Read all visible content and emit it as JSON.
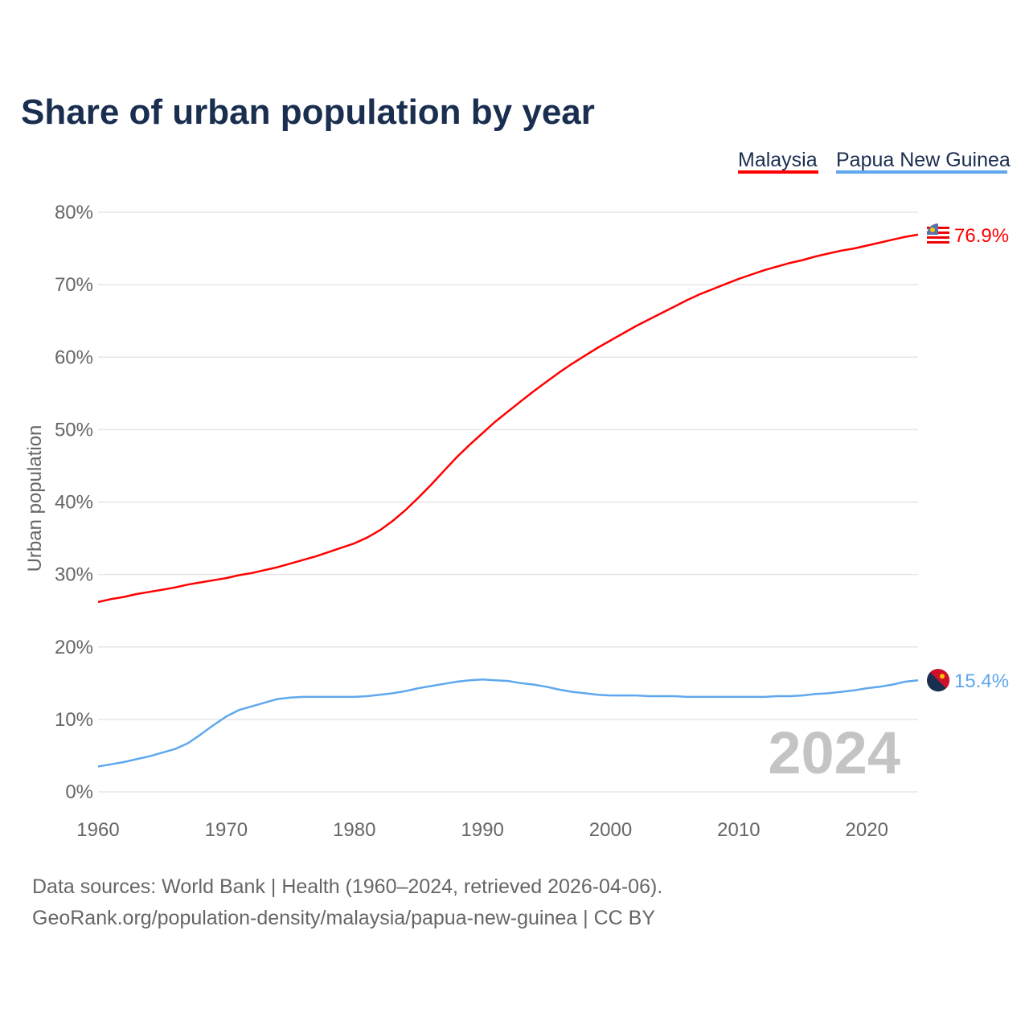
{
  "chart_data": {
    "type": "line",
    "title": "Share of urban population by year",
    "xlabel": "",
    "ylabel": "Urban population",
    "xlim": [
      1960,
      2024
    ],
    "ylim": [
      0,
      80
    ],
    "x_ticks": [
      "1960",
      "1970",
      "1980",
      "1990",
      "2000",
      "2010",
      "2020"
    ],
    "y_ticks": [
      "0%",
      "10%",
      "20%",
      "30%",
      "40%",
      "50%",
      "60%",
      "70%",
      "80%"
    ],
    "grid": true,
    "legend_position": "top-right",
    "year_label": "2024",
    "x_start": 1960,
    "series": [
      {
        "name": "Malaysia",
        "color": "#ff0000",
        "end_label": "76.9%",
        "flag": "malaysia-flag",
        "values": [
          26.2,
          26.6,
          26.9,
          27.3,
          27.6,
          27.9,
          28.2,
          28.6,
          28.9,
          29.2,
          29.5,
          29.9,
          30.2,
          30.6,
          31.0,
          31.5,
          32.0,
          32.5,
          33.1,
          33.7,
          34.3,
          35.1,
          36.1,
          37.4,
          38.9,
          40.6,
          42.4,
          44.3,
          46.2,
          47.9,
          49.5,
          51.1,
          52.5,
          53.9,
          55.3,
          56.6,
          57.9,
          59.1,
          60.2,
          61.3,
          62.3,
          63.3,
          64.3,
          65.2,
          66.1,
          67.0,
          67.9,
          68.7,
          69.4,
          70.1,
          70.8,
          71.4,
          72.0,
          72.5,
          73.0,
          73.4,
          73.9,
          74.3,
          74.7,
          75.0,
          75.4,
          75.8,
          76.2,
          76.6,
          76.9
        ]
      },
      {
        "name": "Papua New Guinea",
        "color": "#5fa8ee",
        "end_label": "15.4%",
        "flag": "papua-new-guinea-flag",
        "values": [
          3.5,
          3.8,
          4.1,
          4.5,
          4.9,
          5.4,
          5.9,
          6.7,
          7.9,
          9.2,
          10.4,
          11.3,
          11.8,
          12.3,
          12.8,
          13.0,
          13.1,
          13.1,
          13.1,
          13.1,
          13.1,
          13.2,
          13.4,
          13.6,
          13.9,
          14.3,
          14.6,
          14.9,
          15.2,
          15.4,
          15.5,
          15.4,
          15.3,
          15.0,
          14.8,
          14.5,
          14.1,
          13.8,
          13.6,
          13.4,
          13.3,
          13.3,
          13.3,
          13.2,
          13.2,
          13.2,
          13.1,
          13.1,
          13.1,
          13.1,
          13.1,
          13.1,
          13.1,
          13.2,
          13.2,
          13.3,
          13.5,
          13.6,
          13.8,
          14.0,
          14.3,
          14.5,
          14.8,
          15.2,
          15.4
        ]
      }
    ]
  },
  "footer": {
    "line1": "Data sources: World Bank | Health (1960–2024, retrieved 2026-04-06).",
    "line2": "GeoRank.org/population-density/malaysia/papua-new-guinea | CC BY"
  }
}
